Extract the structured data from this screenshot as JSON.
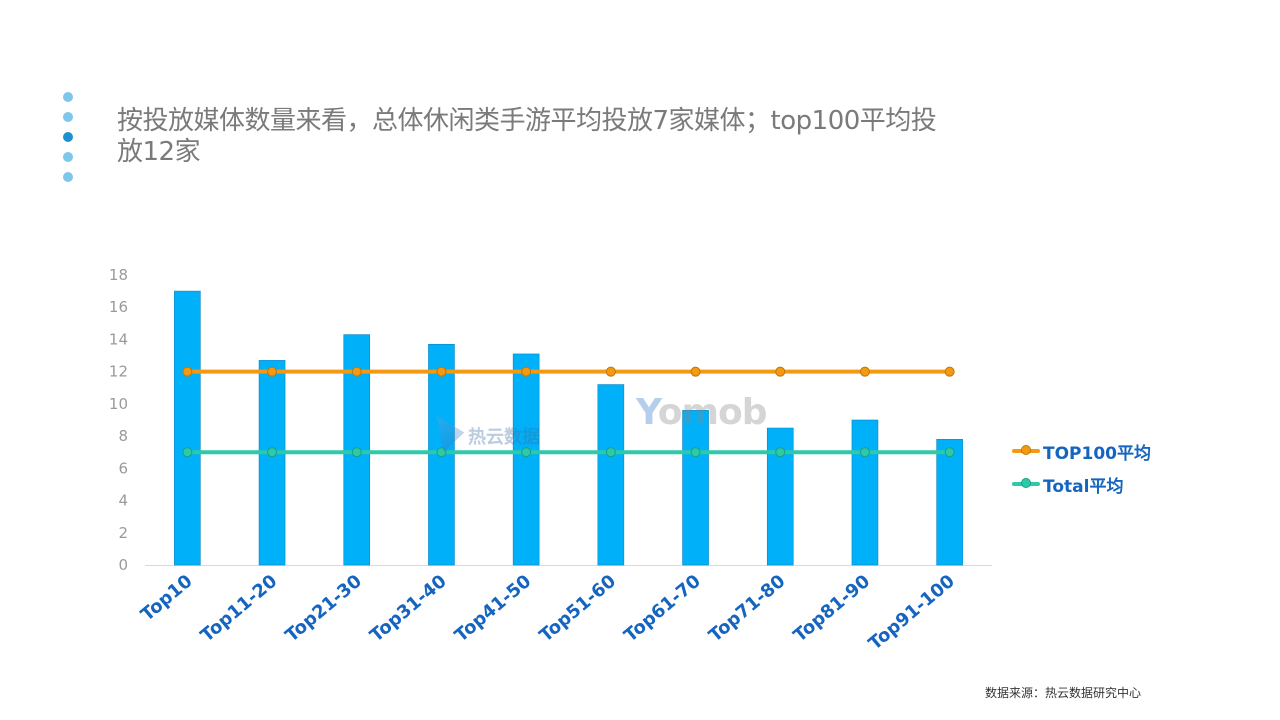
{
  "colors": {
    "bar": "#00b0f8",
    "bar_stroke": "#0a85c2",
    "top100": "#f39a12",
    "total": "#2ec9a8",
    "axis_text": "#9a9a9a",
    "category_text": "#1565c0",
    "title_text": "#7a7a7a",
    "dot_light": "#7ec6ea",
    "dot_dark": "#1e90d0"
  },
  "header": {
    "title": "按投放媒体数量来看，总体休闲类手游平均投放7家媒体；top100平均投放12家",
    "dots": [
      "light",
      "light",
      "dark",
      "light",
      "light"
    ]
  },
  "watermarks": {
    "reyun": "热云数据",
    "yomob_y": "Y",
    "yomob_rest": "omob"
  },
  "chart_data": {
    "type": "bar",
    "categories": [
      "Top10",
      "Top11-20",
      "Top21-30",
      "Top31-40",
      "Top41-50",
      "Top51-60",
      "Top61-70",
      "Top71-80",
      "Top81-90",
      "Top91-100"
    ],
    "values": [
      17,
      12.7,
      14.3,
      13.7,
      13.1,
      11.2,
      9.6,
      8.5,
      9.0,
      7.8
    ],
    "ylim": [
      0,
      18
    ],
    "yticks": [
      0,
      2,
      4,
      6,
      8,
      10,
      12,
      14,
      16,
      18
    ],
    "lines": [
      {
        "name": "TOP100平均",
        "value": 12,
        "color_key": "top100"
      },
      {
        "name": "Total平均",
        "value": 7,
        "color_key": "total"
      }
    ],
    "legend_position": "right",
    "grid": false
  },
  "footer": {
    "source": "数据来源：热云数据研究中心"
  }
}
